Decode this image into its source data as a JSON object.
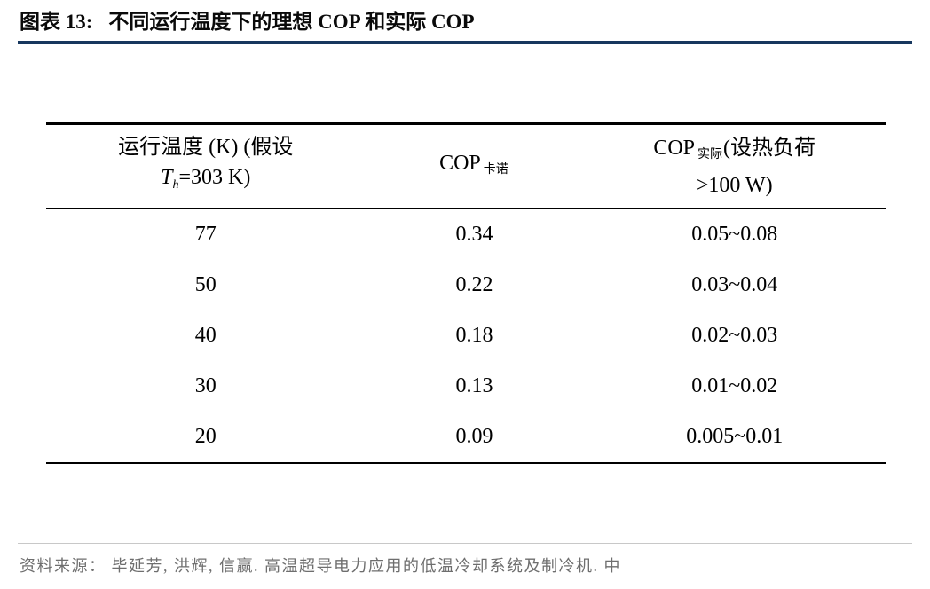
{
  "page": {
    "title_label": "图表 13:",
    "title_text": "不同运行温度下的理想 COP 和实际 COP",
    "accent_color": "#17375E",
    "source_text": "资料来源： 毕延芳, 洪辉, 信赢. 高温超导电力应用的低温冷却系统及制冷机. 中"
  },
  "table": {
    "header": {
      "col1_line1": "运行温度 (K) (假设",
      "col1_T": "T",
      "col1_T_sub": "h",
      "col1_line2_rest": "=303 K)",
      "col2_main": "COP",
      "col2_sub": "卡诺",
      "col3_main": "COP",
      "col3_sub": "实际",
      "col3_line1_rest": "(设热负荷",
      "col3_line2": ">100 W)"
    },
    "rows": [
      [
        "77",
        "0.34",
        "0.05~0.08"
      ],
      [
        "50",
        "0.22",
        "0.03~0.04"
      ],
      [
        "40",
        "0.18",
        "0.02~0.03"
      ],
      [
        "30",
        "0.13",
        "0.01~0.02"
      ],
      [
        "20",
        "0.09",
        "0.005~0.01"
      ]
    ]
  },
  "chart_data": {
    "type": "table",
    "title": "图表 13: 不同运行温度下的理想 COP 和实际 COP",
    "columns": [
      "运行温度 (K) (假设 Th=303 K)",
      "COP 卡诺",
      "COP 实际(设热负荷 >100 W)"
    ],
    "rows": [
      [
        "77",
        "0.34",
        "0.05~0.08"
      ],
      [
        "50",
        "0.22",
        "0.03~0.04"
      ],
      [
        "40",
        "0.18",
        "0.02~0.03"
      ],
      [
        "30",
        "0.13",
        "0.01~0.02"
      ],
      [
        "20",
        "0.09",
        "0.005~0.01"
      ]
    ],
    "source": "资料来源： 毕延芳, 洪辉, 信赢. 高温超导电力应用的低温冷却系统及制冷机. 中"
  }
}
